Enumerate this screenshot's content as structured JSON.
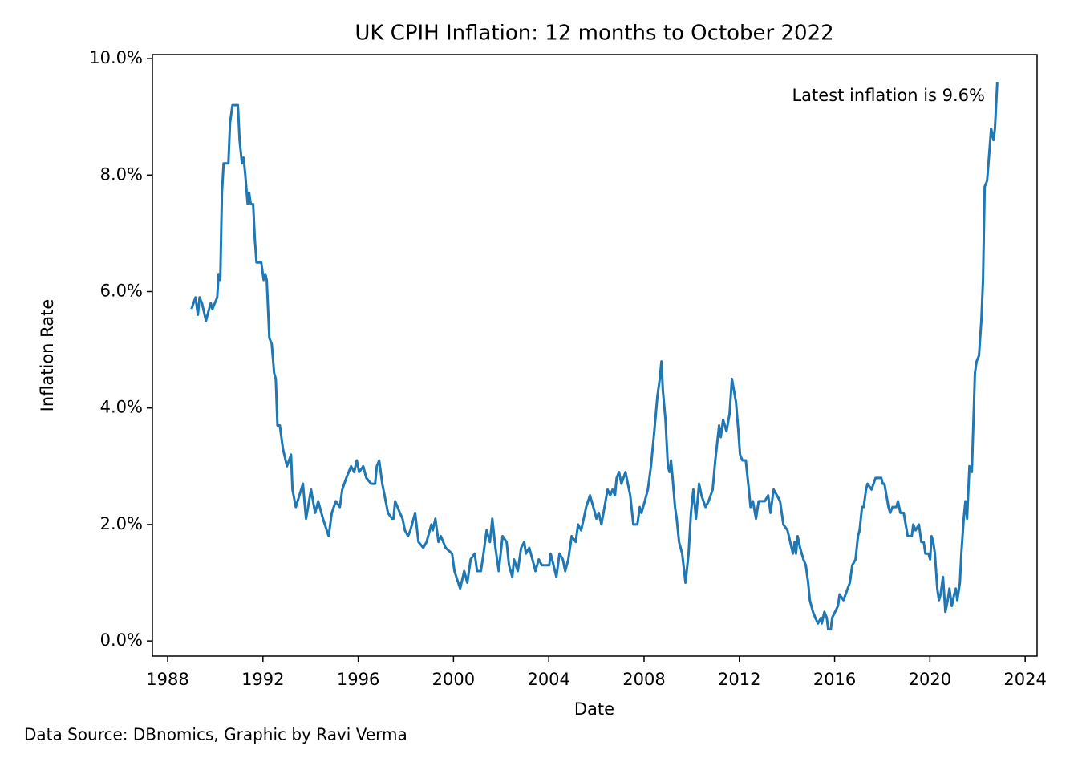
{
  "chart_data": {
    "type": "line",
    "title": "UK CPIH Inflation: 12 months to October 2022",
    "x_label": "Date",
    "y_label": "Inflation Rate",
    "annotation": "Latest inflation is 9.6%",
    "source": "Data Source: DBnomics, Graphic by Ravi Verma",
    "color": "#1f77b4",
    "xlim": [
      1987.36,
      2024.5
    ],
    "ylim": [
      -0.26,
      10.07
    ],
    "xticks": [
      1988,
      1992,
      1996,
      2000,
      2004,
      2008,
      2012,
      2016,
      2020,
      2024
    ],
    "yticks": [
      {
        "value": 0,
        "label": "0.0%"
      },
      {
        "value": 2,
        "label": "2.0%"
      },
      {
        "value": 4,
        "label": "4.0%"
      },
      {
        "value": 6,
        "label": "6.0%"
      },
      {
        "value": 8,
        "label": "8.0%"
      },
      {
        "value": 10,
        "label": "10.0%"
      }
    ],
    "x": [
      1989.0,
      1989.17,
      1989.27,
      1989.34,
      1989.44,
      1989.61,
      1989.74,
      1989.81,
      1989.88,
      1990.08,
      1990.14,
      1990.21,
      1990.28,
      1990.35,
      1990.55,
      1990.62,
      1990.72,
      1990.95,
      1991.02,
      1991.12,
      1991.19,
      1991.26,
      1991.36,
      1991.42,
      1991.49,
      1991.59,
      1991.66,
      1991.73,
      1991.93,
      1992.03,
      1992.1,
      1992.16,
      1992.27,
      1992.37,
      1992.47,
      1992.54,
      1992.61,
      1992.71,
      1992.84,
      1993.01,
      1993.18,
      1993.24,
      1993.38,
      1993.68,
      1993.81,
      1994.02,
      1994.19,
      1994.32,
      1994.52,
      1994.76,
      1994.89,
      1995.06,
      1995.23,
      1995.33,
      1995.5,
      1995.7,
      1995.83,
      1995.94,
      1996.04,
      1996.21,
      1996.34,
      1996.54,
      1996.71,
      1996.78,
      1996.88,
      1997.01,
      1997.25,
      1997.42,
      1997.48,
      1997.55,
      1997.75,
      1997.86,
      1997.96,
      1998.09,
      1998.19,
      1998.39,
      1998.53,
      1998.73,
      1998.87,
      1999.07,
      1999.13,
      1999.24,
      1999.37,
      1999.47,
      1999.67,
      1999.94,
      2000.04,
      2000.28,
      2000.45,
      2000.58,
      2000.72,
      2000.89,
      2000.99,
      2001.15,
      2001.26,
      2001.39,
      2001.53,
      2001.63,
      2001.76,
      2001.9,
      2002.06,
      2002.23,
      2002.33,
      2002.47,
      2002.54,
      2002.7,
      2002.84,
      2002.97,
      2003.04,
      2003.18,
      2003.38,
      2003.44,
      2003.58,
      2003.71,
      2004.02,
      2004.08,
      2004.32,
      2004.45,
      2004.59,
      2004.69,
      2004.82,
      2004.96,
      2005.13,
      2005.23,
      2005.36,
      2005.57,
      2005.73,
      2005.94,
      2006.0,
      2006.1,
      2006.21,
      2006.34,
      2006.47,
      2006.58,
      2006.68,
      2006.78,
      2006.85,
      2006.95,
      2007.05,
      2007.22,
      2007.42,
      2007.55,
      2007.72,
      2007.82,
      2007.89,
      2008.03,
      2008.16,
      2008.29,
      2008.43,
      2008.56,
      2008.66,
      2008.73,
      2008.79,
      2008.9,
      2009.0,
      2009.07,
      2009.13,
      2009.2,
      2009.3,
      2009.37,
      2009.47,
      2009.6,
      2009.74,
      2009.87,
      2009.97,
      2010.07,
      2010.18,
      2010.31,
      2010.41,
      2010.58,
      2010.71,
      2010.88,
      2010.99,
      2011.15,
      2011.22,
      2011.32,
      2011.46,
      2011.59,
      2011.69,
      2011.86,
      2011.96,
      2012.03,
      2012.13,
      2012.27,
      2012.4,
      2012.47,
      2012.57,
      2012.7,
      2012.81,
      2013.07,
      2013.21,
      2013.31,
      2013.44,
      2013.58,
      2013.71,
      2013.85,
      2014.02,
      2014.08,
      2014.25,
      2014.32,
      2014.38,
      2014.45,
      2014.55,
      2014.69,
      2014.79,
      2014.89,
      2014.96,
      2015.09,
      2015.19,
      2015.3,
      2015.43,
      2015.46,
      2015.57,
      2015.67,
      2015.73,
      2015.84,
      2015.9,
      2016.14,
      2016.21,
      2016.37,
      2016.64,
      2016.74,
      2016.88,
      2016.98,
      2017.05,
      2017.15,
      2017.22,
      2017.32,
      2017.38,
      2017.55,
      2017.72,
      2017.96,
      2018.02,
      2018.09,
      2018.26,
      2018.33,
      2018.43,
      2018.59,
      2018.66,
      2018.76,
      2018.9,
      2019.07,
      2019.24,
      2019.3,
      2019.4,
      2019.54,
      2019.64,
      2019.74,
      2019.81,
      2019.94,
      2020.01,
      2020.07,
      2020.14,
      2020.21,
      2020.31,
      2020.38,
      2020.45,
      2020.55,
      2020.65,
      2020.75,
      2020.82,
      2020.92,
      2021.02,
      2021.09,
      2021.15,
      2021.26,
      2021.32,
      2021.42,
      2021.49,
      2021.56,
      2021.66,
      2021.76,
      2021.83,
      2021.89,
      2021.96,
      2022.06,
      2022.16,
      2022.23,
      2022.3,
      2022.4,
      2022.46,
      2022.57,
      2022.67,
      2022.73,
      2022.83
    ],
    "values": [
      5.7,
      5.9,
      5.6,
      5.9,
      5.8,
      5.5,
      5.7,
      5.8,
      5.7,
      5.9,
      6.3,
      6.2,
      7.7,
      8.2,
      8.2,
      8.9,
      9.2,
      9.2,
      8.6,
      8.2,
      8.3,
      8.0,
      7.5,
      7.7,
      7.5,
      7.5,
      6.9,
      6.5,
      6.5,
      6.2,
      6.3,
      6.2,
      5.2,
      5.1,
      4.6,
      4.5,
      3.7,
      3.7,
      3.3,
      3.0,
      3.2,
      2.6,
      2.3,
      2.7,
      2.1,
      2.6,
      2.2,
      2.4,
      2.1,
      1.8,
      2.2,
      2.4,
      2.3,
      2.6,
      2.8,
      3.0,
      2.9,
      3.1,
      2.9,
      3.0,
      2.8,
      2.7,
      2.7,
      3.0,
      3.1,
      2.7,
      2.2,
      2.1,
      2.1,
      2.4,
      2.2,
      2.1,
      1.9,
      1.8,
      1.9,
      2.2,
      1.7,
      1.6,
      1.7,
      2.0,
      1.9,
      2.1,
      1.7,
      1.8,
      1.6,
      1.5,
      1.2,
      0.9,
      1.2,
      1.0,
      1.4,
      1.5,
      1.2,
      1.2,
      1.5,
      1.9,
      1.7,
      2.1,
      1.6,
      1.2,
      1.8,
      1.7,
      1.3,
      1.1,
      1.4,
      1.2,
      1.6,
      1.7,
      1.5,
      1.6,
      1.3,
      1.2,
      1.4,
      1.3,
      1.3,
      1.5,
      1.1,
      1.5,
      1.4,
      1.2,
      1.4,
      1.8,
      1.7,
      2.0,
      1.9,
      2.3,
      2.5,
      2.2,
      2.1,
      2.2,
      2.0,
      2.3,
      2.6,
      2.5,
      2.6,
      2.5,
      2.8,
      2.9,
      2.7,
      2.9,
      2.5,
      2.0,
      2.0,
      2.3,
      2.2,
      2.4,
      2.6,
      3.0,
      3.6,
      4.2,
      4.5,
      4.8,
      4.3,
      3.8,
      3.0,
      2.9,
      3.1,
      2.8,
      2.3,
      2.1,
      1.7,
      1.5,
      1.0,
      1.5,
      2.2,
      2.6,
      2.1,
      2.7,
      2.5,
      2.3,
      2.4,
      2.6,
      3.1,
      3.7,
      3.5,
      3.8,
      3.6,
      3.9,
      4.5,
      4.1,
      3.6,
      3.2,
      3.1,
      3.1,
      2.6,
      2.3,
      2.4,
      2.1,
      2.4,
      2.4,
      2.5,
      2.2,
      2.6,
      2.5,
      2.4,
      2.0,
      1.9,
      1.8,
      1.5,
      1.7,
      1.5,
      1.8,
      1.6,
      1.4,
      1.3,
      1.0,
      0.7,
      0.5,
      0.4,
      0.3,
      0.4,
      0.3,
      0.5,
      0.4,
      0.2,
      0.2,
      0.4,
      0.6,
      0.8,
      0.7,
      1.0,
      1.3,
      1.4,
      1.8,
      1.9,
      2.3,
      2.3,
      2.6,
      2.7,
      2.6,
      2.8,
      2.8,
      2.7,
      2.7,
      2.3,
      2.2,
      2.3,
      2.3,
      2.4,
      2.2,
      2.2,
      1.8,
      1.8,
      2.0,
      1.9,
      2.0,
      1.7,
      1.7,
      1.5,
      1.5,
      1.4,
      1.8,
      1.7,
      1.5,
      0.9,
      0.7,
      0.8,
      1.1,
      0.5,
      0.7,
      0.9,
      0.6,
      0.8,
      0.9,
      0.7,
      1.0,
      1.5,
      2.1,
      2.4,
      2.1,
      3.0,
      2.9,
      3.8,
      4.6,
      4.8,
      4.9,
      5.5,
      6.2,
      7.8,
      7.9,
      8.2,
      8.8,
      8.6,
      8.8,
      9.6
    ]
  }
}
